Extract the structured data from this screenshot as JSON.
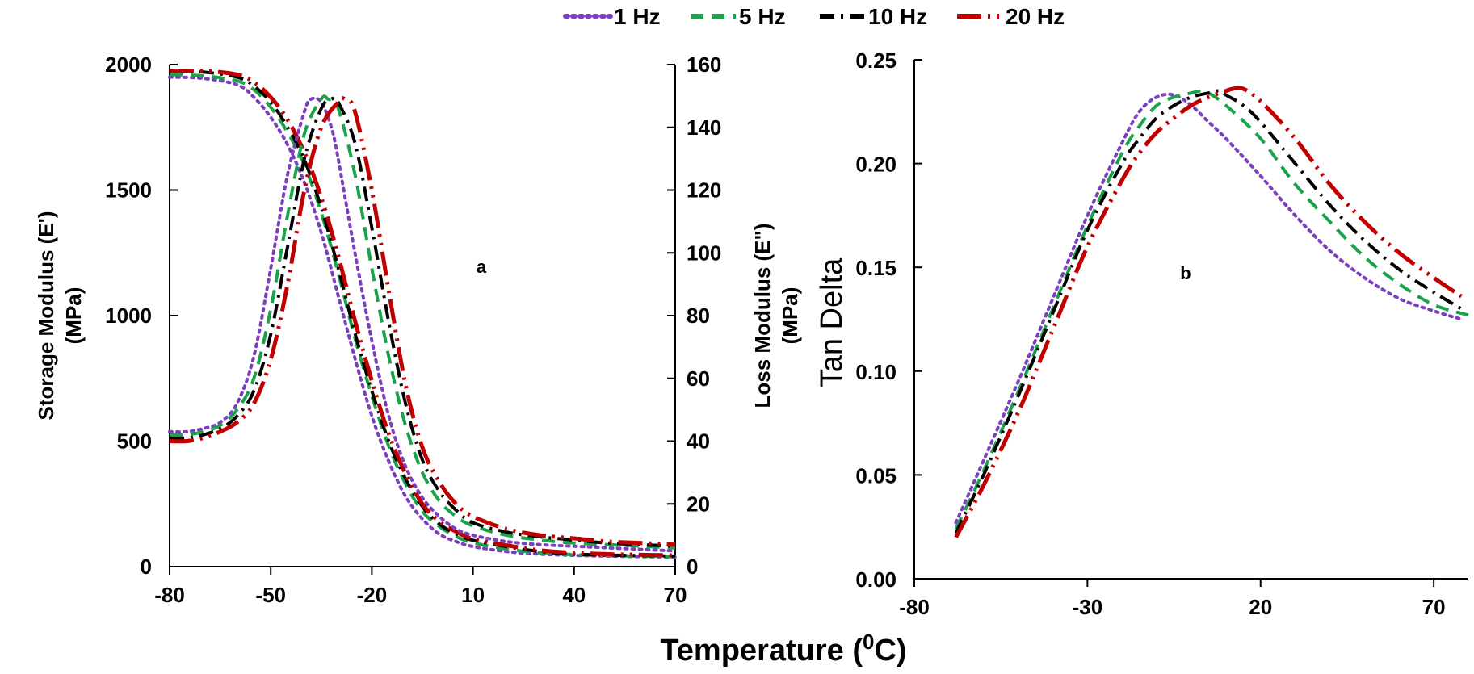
{
  "legend": [
    {
      "label": "1 Hz",
      "color": "#7b3fbf",
      "dash": "dotted"
    },
    {
      "label": "5 Hz",
      "color": "#1aa34a",
      "dash": "dashed"
    },
    {
      "label": "10 Hz",
      "color": "#000000",
      "dash": "dashdot"
    },
    {
      "label": "20 Hz",
      "color": "#c00000",
      "dash": "longdashdot"
    }
  ],
  "x_axis_title": "Temperature (",
  "x_axis_title_sup": "0",
  "x_axis_title_end": "C)",
  "chart_data": [
    {
      "type": "line",
      "panel_label": "a",
      "x_ticks": [
        "-80",
        "-50",
        "-20",
        "10",
        "40",
        "70"
      ],
      "xlim": [
        -80,
        70
      ],
      "left_axis": {
        "label_line1": "Storage Modulus (E')",
        "label_line2": "(MPa)",
        "ylim": [
          0,
          2000
        ],
        "ticks": [
          "0",
          "500",
          "1000",
          "1500",
          "2000"
        ]
      },
      "right_axis": {
        "label_line1": "Loss Modulus (E\")",
        "label_line2": "(MPa)",
        "ylim": [
          0,
          160
        ],
        "ticks": [
          "0",
          "20",
          "40",
          "60",
          "80",
          "100",
          "120",
          "140",
          "160"
        ]
      },
      "storage_modulus": [
        {
          "name": "1 Hz",
          "x": [
            -80,
            -70,
            -60,
            -55,
            -50,
            -45,
            -40,
            -35,
            -30,
            -25,
            -20,
            -15,
            -10,
            -5,
            0,
            5,
            10,
            20,
            30,
            40,
            50,
            60,
            70
          ],
          "y": [
            1950,
            1945,
            1920,
            1870,
            1790,
            1680,
            1530,
            1330,
            1080,
            830,
            600,
            420,
            280,
            190,
            130,
            100,
            80,
            60,
            50,
            45,
            42,
            40,
            38
          ]
        },
        {
          "name": "5 Hz",
          "x": [
            -80,
            -70,
            -60,
            -55,
            -50,
            -45,
            -40,
            -35,
            -30,
            -25,
            -20,
            -15,
            -10,
            -5,
            0,
            5,
            10,
            20,
            30,
            40,
            50,
            60,
            70
          ],
          "y": [
            1960,
            1955,
            1935,
            1900,
            1830,
            1730,
            1600,
            1410,
            1170,
            910,
            680,
            480,
            330,
            220,
            160,
            120,
            95,
            70,
            55,
            48,
            44,
            42,
            40
          ]
        },
        {
          "name": "10 Hz",
          "x": [
            -80,
            -70,
            -60,
            -55,
            -50,
            -45,
            -40,
            -35,
            -30,
            -25,
            -20,
            -15,
            -10,
            -5,
            0,
            5,
            10,
            20,
            30,
            40,
            50,
            60,
            70
          ],
          "y": [
            1975,
            1970,
            1950,
            1915,
            1850,
            1750,
            1620,
            1430,
            1190,
            930,
            700,
            500,
            350,
            240,
            170,
            130,
            105,
            80,
            60,
            50,
            46,
            44,
            42
          ]
        },
        {
          "name": "20 Hz",
          "x": [
            -80,
            -70,
            -60,
            -55,
            -50,
            -45,
            -40,
            -35,
            -30,
            -25,
            -20,
            -15,
            -10,
            -5,
            0,
            5,
            10,
            20,
            30,
            40,
            50,
            60,
            70
          ],
          "y": [
            1975,
            1975,
            1960,
            1930,
            1870,
            1780,
            1650,
            1470,
            1240,
            980,
            740,
            530,
            370,
            250,
            180,
            140,
            110,
            85,
            65,
            55,
            50,
            47,
            45
          ]
        }
      ],
      "loss_modulus": [
        {
          "name": "1 Hz",
          "x": [
            -80,
            -75,
            -70,
            -65,
            -60,
            -55,
            -50,
            -45,
            -40,
            -38,
            -35,
            -32,
            -30,
            -25,
            -20,
            -15,
            -10,
            -5,
            0,
            5,
            10,
            20,
            30,
            40,
            50,
            60,
            70
          ],
          "y": [
            43,
            43,
            44,
            46,
            52,
            67,
            95,
            125,
            145,
            149,
            148,
            140,
            130,
            100,
            72,
            48,
            32,
            22,
            16,
            12,
            10,
            8,
            7,
            6.5,
            6,
            5.5,
            5
          ]
        },
        {
          "name": "5 Hz",
          "x": [
            -80,
            -75,
            -70,
            -65,
            -60,
            -55,
            -50,
            -45,
            -40,
            -35,
            -33,
            -30,
            -25,
            -20,
            -15,
            -10,
            -5,
            0,
            5,
            10,
            20,
            30,
            40,
            50,
            60,
            70
          ],
          "y": [
            42,
            42,
            43,
            45,
            50,
            60,
            82,
            112,
            138,
            149,
            149,
            146,
            125,
            95,
            67,
            45,
            30,
            21,
            16,
            13,
            10,
            8.5,
            7.5,
            7,
            6.5,
            6
          ]
        },
        {
          "name": "10 Hz",
          "x": [
            -80,
            -75,
            -70,
            -65,
            -60,
            -55,
            -50,
            -45,
            -40,
            -35,
            -32,
            -30,
            -25,
            -20,
            -15,
            -10,
            -5,
            0,
            5,
            10,
            20,
            30,
            40,
            50,
            60,
            70
          ],
          "y": [
            41,
            41,
            42,
            44,
            48,
            56,
            74,
            102,
            130,
            146,
            149,
            148,
            135,
            108,
            78,
            52,
            34,
            24,
            18,
            14,
            11,
            9.5,
            8.5,
            7.5,
            7,
            6.5
          ]
        },
        {
          "name": "20 Hz",
          "x": [
            -80,
            -75,
            -70,
            -65,
            -60,
            -55,
            -50,
            -45,
            -40,
            -35,
            -30,
            -28,
            -25,
            -20,
            -15,
            -10,
            -5,
            0,
            5,
            10,
            20,
            30,
            40,
            50,
            60,
            70
          ],
          "y": [
            40,
            40,
            41,
            43,
            46,
            52,
            66,
            90,
            120,
            140,
            148,
            149,
            145,
            120,
            88,
            58,
            38,
            27,
            20,
            16,
            12,
            10,
            9,
            8,
            7.5,
            7
          ]
        }
      ]
    },
    {
      "type": "line",
      "panel_label": "b",
      "x_ticks": [
        "-80",
        "-30",
        "20",
        "70"
      ],
      "xlim": [
        -80,
        80
      ],
      "ylabel": "Tan Delta",
      "ylim": [
        0,
        0.25
      ],
      "y_ticks": [
        "0.00",
        "0.05",
        "0.10",
        "0.15",
        "0.20",
        "0.25"
      ],
      "series": [
        {
          "name": "1 Hz",
          "x": [
            -68,
            -60,
            -50,
            -40,
            -30,
            -20,
            -15,
            -10,
            -5,
            0,
            5,
            10,
            20,
            30,
            40,
            50,
            60,
            70,
            78
          ],
          "y": [
            0.027,
            0.057,
            0.095,
            0.135,
            0.175,
            0.21,
            0.225,
            0.232,
            0.233,
            0.228,
            0.22,
            0.212,
            0.194,
            0.175,
            0.158,
            0.145,
            0.135,
            0.129,
            0.125
          ]
        },
        {
          "name": "5 Hz",
          "x": [
            -68,
            -60,
            -50,
            -40,
            -30,
            -20,
            -15,
            -10,
            -5,
            0,
            3,
            5,
            10,
            20,
            30,
            40,
            50,
            60,
            70,
            80
          ],
          "y": [
            0.024,
            0.052,
            0.09,
            0.13,
            0.17,
            0.205,
            0.218,
            0.228,
            0.232,
            0.234,
            0.235,
            0.234,
            0.228,
            0.212,
            0.19,
            0.172,
            0.155,
            0.142,
            0.132,
            0.127
          ]
        },
        {
          "name": "10 Hz",
          "x": [
            -68,
            -60,
            -50,
            -40,
            -30,
            -20,
            -15,
            -10,
            -5,
            0,
            5,
            8,
            10,
            15,
            20,
            30,
            40,
            50,
            60,
            70,
            78
          ],
          "y": [
            0.022,
            0.05,
            0.088,
            0.128,
            0.168,
            0.2,
            0.212,
            0.222,
            0.228,
            0.232,
            0.234,
            0.235,
            0.233,
            0.228,
            0.22,
            0.2,
            0.18,
            0.163,
            0.149,
            0.138,
            0.13
          ]
        },
        {
          "name": "20 Hz",
          "x": [
            -68,
            -60,
            -50,
            -40,
            -30,
            -20,
            -15,
            -10,
            -5,
            0,
            5,
            10,
            12,
            15,
            20,
            30,
            40,
            50,
            60,
            70,
            78
          ],
          "y": [
            0.02,
            0.045,
            0.08,
            0.12,
            0.16,
            0.192,
            0.205,
            0.215,
            0.222,
            0.228,
            0.232,
            0.235,
            0.236,
            0.236,
            0.23,
            0.212,
            0.19,
            0.172,
            0.157,
            0.145,
            0.136
          ]
        }
      ]
    }
  ]
}
